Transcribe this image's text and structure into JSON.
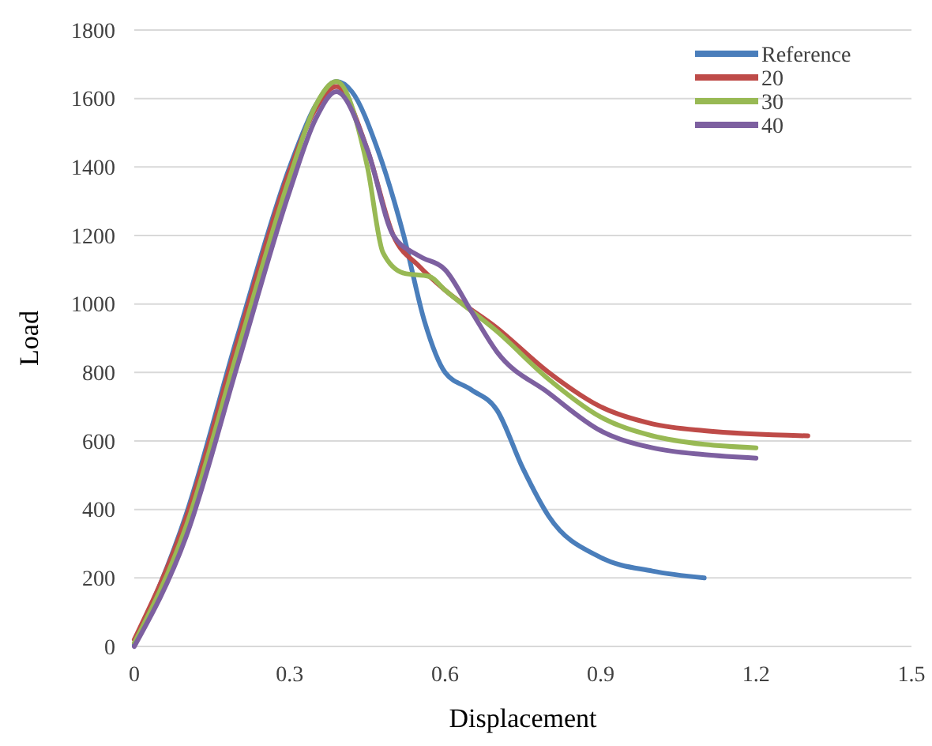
{
  "chart_data": {
    "type": "line",
    "xlabel": "Displacement",
    "ylabel": "Load",
    "xlim": [
      0,
      1.5
    ],
    "xticks": [
      0,
      0.3,
      0.6,
      0.9,
      1.2,
      1.5
    ],
    "ylim": [
      0,
      1800
    ],
    "yticks": [
      0,
      200,
      400,
      600,
      800,
      1000,
      1200,
      1400,
      1600,
      1800
    ],
    "grid": "y",
    "legend": "top right",
    "marker": "none",
    "line_style": "solid",
    "series": [
      {
        "name": "Reference",
        "color": "#4a7ebb",
        "x": [
          0,
          0.1,
          0.2,
          0.3,
          0.35,
          0.39,
          0.42,
          0.47,
          0.52,
          0.56,
          0.6,
          0.65,
          0.7,
          0.75,
          0.8,
          0.9,
          1.0,
          1.1
        ],
        "values": [
          5,
          385,
          910,
          1400,
          1580,
          1650,
          1620,
          1450,
          1200,
          950,
          800,
          750,
          690,
          520,
          380,
          260,
          220,
          200
        ]
      },
      {
        "name": "20",
        "color": "#be4b48",
        "x": [
          0,
          0.1,
          0.2,
          0.3,
          0.35,
          0.39,
          0.45,
          0.5,
          0.55,
          0.6,
          0.7,
          0.8,
          0.9,
          1.0,
          1.1,
          1.3
        ],
        "values": [
          20,
          375,
          895,
          1390,
          1570,
          1635,
          1450,
          1200,
          1110,
          1040,
          930,
          800,
          700,
          650,
          630,
          615
        ]
      },
      {
        "name": "30",
        "color": "#98b954",
        "x": [
          0,
          0.1,
          0.2,
          0.3,
          0.35,
          0.39,
          0.45,
          0.48,
          0.52,
          0.57,
          0.6,
          0.7,
          0.8,
          0.9,
          1.0,
          1.1,
          1.2
        ],
        "values": [
          10,
          350,
          865,
          1370,
          1580,
          1650,
          1400,
          1150,
          1090,
          1080,
          1040,
          920,
          780,
          670,
          615,
          590,
          580
        ]
      },
      {
        "name": "40",
        "color": "#7d60a0",
        "x": [
          0,
          0.1,
          0.2,
          0.3,
          0.35,
          0.39,
          0.45,
          0.5,
          0.55,
          0.6,
          0.65,
          0.7,
          0.8,
          0.9,
          1.0,
          1.1,
          1.2
        ],
        "values": [
          0,
          320,
          825,
          1330,
          1540,
          1620,
          1450,
          1200,
          1140,
          1100,
          980,
          860,
          740,
          630,
          580,
          560,
          550
        ]
      }
    ]
  }
}
